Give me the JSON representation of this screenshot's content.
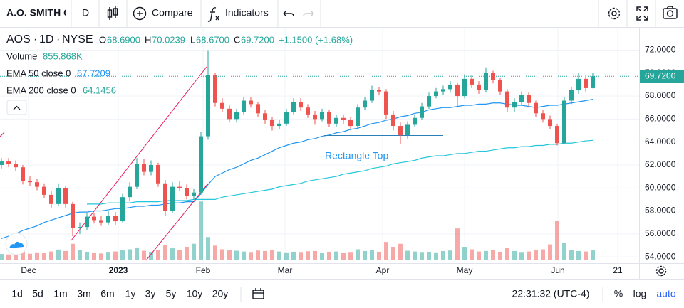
{
  "toolbar": {
    "symbol": "A.O. SMITH C",
    "interval": "D",
    "compare": "Compare",
    "indicators": "Indicators"
  },
  "legend": {
    "ticker": "AOS",
    "interval": "1D",
    "exchange": "NYSE",
    "open_label": "O",
    "open": "68.6900",
    "high_label": "H",
    "high": "70.0239",
    "low_label": "L",
    "low": "68.6700",
    "close_label": "C",
    "close": "69.7200",
    "change": "+1.1500 (+1.68%)",
    "volume_label": "Volume",
    "volume": "855.868K",
    "ema50_label": "EMA 50 close 0",
    "ema50": "67.7209",
    "ema200_label": "EMA 200 close 0",
    "ema200": "64.1456"
  },
  "chart_data": {
    "type": "candlestick",
    "up_color": "#26a69a",
    "down_color": "#ef5350",
    "candles": [
      [
        62.0,
        62.6,
        61.7,
        62.3
      ],
      [
        62.3,
        62.6,
        61.8,
        62.1
      ],
      [
        62.1,
        62.4,
        61.5,
        61.8
      ],
      [
        61.8,
        62.0,
        60.3,
        60.6
      ],
      [
        60.6,
        61.0,
        60.2,
        60.5
      ],
      [
        60.5,
        60.8,
        59.8,
        60.1
      ],
      [
        60.1,
        60.4,
        59.1,
        59.4
      ],
      [
        59.4,
        59.7,
        58.3,
        58.6
      ],
      [
        58.6,
        60.4,
        58.4,
        60.0
      ],
      [
        60.0,
        60.2,
        58.3,
        58.6
      ],
      [
        58.6,
        58.8,
        55.8,
        56.5
      ],
      [
        56.5,
        57.0,
        56.0,
        56.6
      ],
      [
        56.6,
        57.8,
        56.3,
        57.5
      ],
      [
        57.5,
        57.8,
        56.9,
        57.2
      ],
      [
        57.2,
        57.6,
        56.7,
        57.0
      ],
      [
        57.0,
        58.0,
        56.8,
        57.6
      ],
      [
        57.6,
        57.9,
        56.8,
        57.1
      ],
      [
        57.1,
        59.5,
        57.0,
        59.2
      ],
      [
        59.2,
        60.5,
        58.9,
        60.1
      ],
      [
        60.1,
        62.6,
        59.9,
        62.1
      ],
      [
        62.1,
        62.5,
        61.1,
        61.4
      ],
      [
        61.4,
        62.4,
        61.1,
        62.0
      ],
      [
        62.0,
        62.2,
        60.1,
        60.4
      ],
      [
        60.4,
        60.7,
        57.6,
        58.0
      ],
      [
        58.0,
        60.5,
        57.8,
        60.1
      ],
      [
        60.1,
        60.6,
        59.7,
        60.0
      ],
      [
        60.0,
        60.3,
        59.0,
        59.3
      ],
      [
        59.3,
        59.9,
        59.0,
        59.6
      ],
      [
        59.6,
        64.9,
        59.4,
        64.5
      ],
      [
        64.5,
        72.0,
        64.2,
        69.8
      ],
      [
        69.8,
        70.0,
        67.1,
        67.4
      ],
      [
        67.4,
        67.8,
        66.6,
        66.9
      ],
      [
        66.9,
        67.2,
        65.7,
        66.0
      ],
      [
        66.0,
        66.9,
        65.7,
        66.6
      ],
      [
        66.6,
        67.9,
        66.4,
        67.6
      ],
      [
        67.6,
        67.9,
        67.0,
        67.3
      ],
      [
        67.3,
        67.5,
        66.2,
        66.5
      ],
      [
        66.5,
        66.8,
        65.6,
        65.9
      ],
      [
        65.9,
        66.2,
        65.0,
        65.4
      ],
      [
        65.4,
        65.9,
        65.1,
        65.6
      ],
      [
        65.6,
        66.9,
        65.4,
        66.6
      ],
      [
        66.6,
        67.8,
        66.4,
        67.5
      ],
      [
        67.5,
        67.8,
        66.7,
        67.0
      ],
      [
        67.0,
        67.3,
        66.1,
        66.4
      ],
      [
        66.4,
        66.7,
        65.5,
        66.0
      ],
      [
        66.0,
        66.9,
        65.8,
        66.6
      ],
      [
        66.6,
        66.8,
        65.3,
        65.6
      ],
      [
        65.6,
        66.4,
        65.3,
        66.1
      ],
      [
        66.1,
        66.4,
        65.6,
        65.9
      ],
      [
        65.9,
        66.2,
        65.1,
        65.4
      ],
      [
        65.4,
        67.3,
        65.2,
        67.0
      ],
      [
        67.0,
        67.9,
        66.8,
        67.6
      ],
      [
        67.6,
        68.9,
        67.4,
        68.5
      ],
      [
        68.5,
        68.8,
        68.1,
        68.4
      ],
      [
        68.4,
        68.6,
        66.0,
        66.4
      ],
      [
        66.4,
        66.7,
        65.0,
        65.4
      ],
      [
        65.4,
        65.7,
        63.8,
        64.6
      ],
      [
        64.6,
        65.8,
        64.3,
        65.5
      ],
      [
        65.5,
        66.4,
        65.3,
        66.1
      ],
      [
        66.1,
        67.4,
        65.9,
        67.1
      ],
      [
        67.1,
        68.3,
        66.9,
        68.0
      ],
      [
        68.0,
        68.7,
        67.8,
        68.4
      ],
      [
        68.4,
        68.9,
        68.1,
        68.6
      ],
      [
        68.6,
        69.3,
        68.3,
        69.0
      ],
      [
        69.0,
        69.2,
        67.0,
        68.0
      ],
      [
        68.0,
        69.9,
        67.8,
        69.5
      ],
      [
        69.5,
        69.8,
        68.7,
        69.0
      ],
      [
        69.0,
        69.3,
        68.2,
        68.5
      ],
      [
        68.5,
        70.5,
        68.3,
        70.0
      ],
      [
        70.0,
        70.2,
        69.1,
        69.4
      ],
      [
        69.4,
        69.6,
        68.1,
        68.4
      ],
      [
        68.4,
        68.6,
        66.6,
        67.0
      ],
      [
        67.0,
        67.8,
        66.6,
        67.5
      ],
      [
        67.5,
        68.4,
        67.2,
        68.1
      ],
      [
        68.1,
        68.3,
        67.1,
        67.4
      ],
      [
        67.4,
        67.6,
        66.2,
        66.5
      ],
      [
        66.5,
        66.8,
        65.7,
        66.0
      ],
      [
        66.0,
        66.3,
        65.1,
        65.4
      ],
      [
        65.4,
        65.6,
        63.7,
        63.9
      ],
      [
        63.9,
        67.9,
        63.8,
        67.6
      ],
      [
        67.6,
        68.8,
        67.3,
        68.5
      ],
      [
        68.5,
        70.0,
        68.2,
        69.5
      ],
      [
        69.5,
        69.8,
        68.4,
        68.69
      ],
      [
        68.69,
        70.0239,
        68.67,
        69.72
      ]
    ],
    "volume": {
      "values": [
        520,
        480,
        610,
        700,
        540,
        650,
        590,
        720,
        880,
        760,
        1350,
        820,
        700,
        640,
        560,
        690,
        720,
        860,
        900,
        1050,
        780,
        700,
        820,
        1250,
        980,
        870,
        1100,
        1350,
        4800,
        1900,
        1200,
        900,
        860,
        780,
        720,
        680,
        800,
        760,
        840,
        720,
        650,
        700,
        680,
        740,
        760,
        620,
        700,
        720,
        640,
        680,
        900,
        760,
        820,
        700,
        1500,
        1100,
        1350,
        780,
        720,
        680,
        700,
        650,
        760,
        800,
        2600,
        1100,
        900,
        720,
        760,
        820,
        700,
        1000,
        760,
        680,
        720,
        820,
        900,
        1300,
        3200,
        1400,
        860,
        760,
        720,
        855.868
      ]
    },
    "series": [
      {
        "name": "EMA 50 close 0",
        "color": "#2196f3",
        "values": [
          55.6,
          55.8,
          56.0,
          56.3,
          56.5,
          56.7,
          57.0,
          57.2,
          57.4,
          57.6,
          57.8,
          57.9,
          57.9,
          58.0,
          58.0,
          58.1,
          58.2,
          58.2,
          58.3,
          58.4,
          58.4,
          58.5,
          58.5,
          58.6,
          58.7,
          58.7,
          58.8,
          58.8,
          59.5,
          60.3,
          61.0,
          61.3,
          61.6,
          61.8,
          62.1,
          62.4,
          62.6,
          62.9,
          63.2,
          63.5,
          63.7,
          63.9,
          64.0,
          64.2,
          64.3,
          64.5,
          64.6,
          64.8,
          64.9,
          65.1,
          65.2,
          65.4,
          65.6,
          65.7,
          65.9,
          66.0,
          66.2,
          66.3,
          66.5,
          66.6,
          66.8,
          66.9,
          67.0,
          67.0,
          67.1,
          67.2,
          67.2,
          67.3,
          67.3,
          67.4,
          67.4,
          67.3,
          67.2,
          67.2,
          67.1,
          67.0,
          67.1,
          67.2,
          67.2,
          67.3,
          67.4,
          67.5,
          67.6,
          67.7209
        ]
      },
      {
        "name": "EMA 200 close 0",
        "color": "#26c6da",
        "values": [
          null,
          null,
          null,
          null,
          null,
          null,
          null,
          null,
          null,
          null,
          null,
          null,
          58.6,
          58.6,
          58.6,
          58.7,
          58.7,
          58.7,
          58.7,
          58.8,
          58.8,
          58.8,
          58.8,
          58.9,
          58.9,
          58.9,
          58.9,
          59.0,
          59.0,
          59.0,
          59.0,
          59.2,
          59.3,
          59.4,
          59.5,
          59.6,
          59.7,
          59.8,
          59.9,
          60.1,
          60.2,
          60.3,
          60.4,
          60.6,
          60.7,
          60.8,
          60.9,
          61.0,
          61.2,
          61.3,
          61.4,
          61.5,
          61.7,
          61.8,
          61.9,
          62.1,
          62.2,
          62.3,
          62.4,
          62.6,
          62.7,
          62.8,
          62.8,
          62.9,
          63.0,
          63.0,
          63.1,
          63.2,
          63.2,
          63.3,
          63.4,
          63.5,
          63.5,
          63.6,
          63.6,
          63.7,
          63.7,
          63.8,
          63.8,
          63.9,
          63.9,
          64.0,
          64.1,
          64.1456
        ]
      }
    ],
    "ylim": [
      53.45,
      73.95
    ],
    "yticks": [
      {
        "value": 54,
        "label": "54.0000"
      },
      {
        "value": 56,
        "label": "56.0000"
      },
      {
        "value": 58,
        "label": "58.0000"
      },
      {
        "value": 60,
        "label": "60.0000"
      },
      {
        "value": 62,
        "label": "62.0000"
      },
      {
        "value": 64,
        "label": "64.0000"
      },
      {
        "value": 66,
        "label": "66.0000"
      },
      {
        "value": 68,
        "label": "68.0000"
      },
      {
        "value": 70,
        "label": "70.0000"
      },
      {
        "value": 72,
        "label": "72.0000"
      }
    ],
    "xticks": [
      {
        "value": 3.8,
        "label": "Dec"
      },
      {
        "value": 16.4,
        "label": "2023"
      },
      {
        "value": 28.3,
        "label": "Feb"
      },
      {
        "value": 39.8,
        "label": "Mar"
      },
      {
        "value": 53.5,
        "label": "Apr"
      },
      {
        "value": 65,
        "label": "May"
      },
      {
        "value": 78.1,
        "label": "Jun"
      },
      {
        "value": 86.5,
        "label": "21"
      }
    ],
    "last_price": {
      "value": 69.72,
      "label": "69.7200"
    },
    "annotation": "Rectangle Top"
  },
  "bottom_bar": {
    "ranges": [
      "1d",
      "5d",
      "1m",
      "3m",
      "6m",
      "1y",
      "3y",
      "5y",
      "10y",
      "20y"
    ],
    "time": "22:31:32 (UTC-4)",
    "percent": "%",
    "log": "log",
    "auto": "auto"
  }
}
